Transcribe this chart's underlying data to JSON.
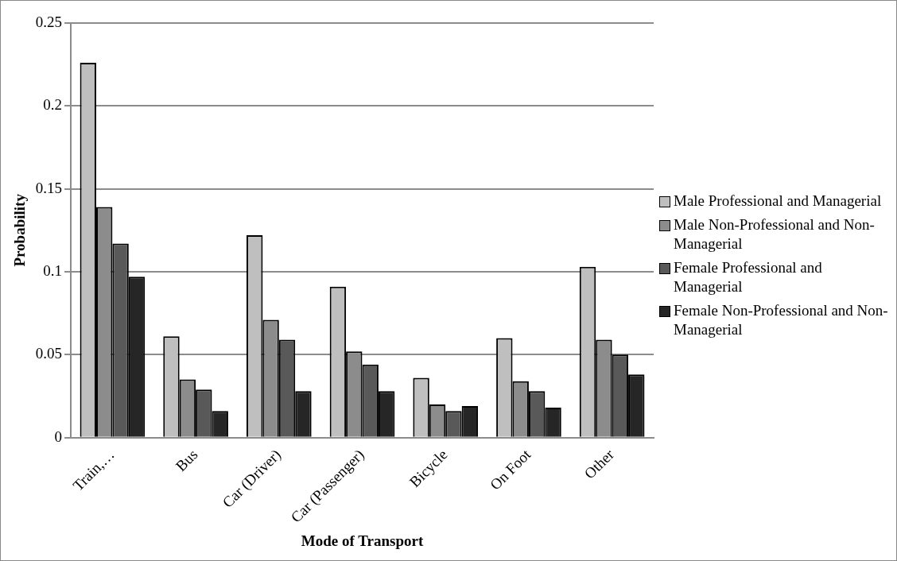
{
  "chart_data": {
    "type": "bar",
    "xlabel": "Mode of Transport",
    "ylabel": "Probability",
    "categories": [
      "Train,…",
      "Bus",
      "Car (Driver)",
      "Car (Passenger)",
      "Bicycle",
      "On Foot",
      "Other"
    ],
    "series": [
      {
        "name": "Male Professional and Managerial",
        "color": "#bfbfbf",
        "values": [
          0.226,
          0.061,
          0.122,
          0.091,
          0.036,
          0.06,
          0.103
        ]
      },
      {
        "name": "Male Non-Professional and Non-Managerial",
        "color": "#8c8c8c",
        "values": [
          0.139,
          0.035,
          0.071,
          0.052,
          0.02,
          0.034,
          0.059
        ]
      },
      {
        "name": "Female Professional and Managerial",
        "color": "#595959",
        "values": [
          0.117,
          0.029,
          0.059,
          0.044,
          0.016,
          0.028,
          0.05
        ]
      },
      {
        "name": "Female Non-Professional and Non-Managerial",
        "color": "#262626",
        "values": [
          0.097,
          0.016,
          0.028,
          0.028,
          0.019,
          0.018,
          0.038
        ]
      }
    ],
    "ylim": [
      0,
      0.25
    ],
    "yticks": [
      0,
      0.05,
      0.1,
      0.15,
      0.2,
      0.25
    ],
    "grid": "y",
    "legend": "right"
  }
}
